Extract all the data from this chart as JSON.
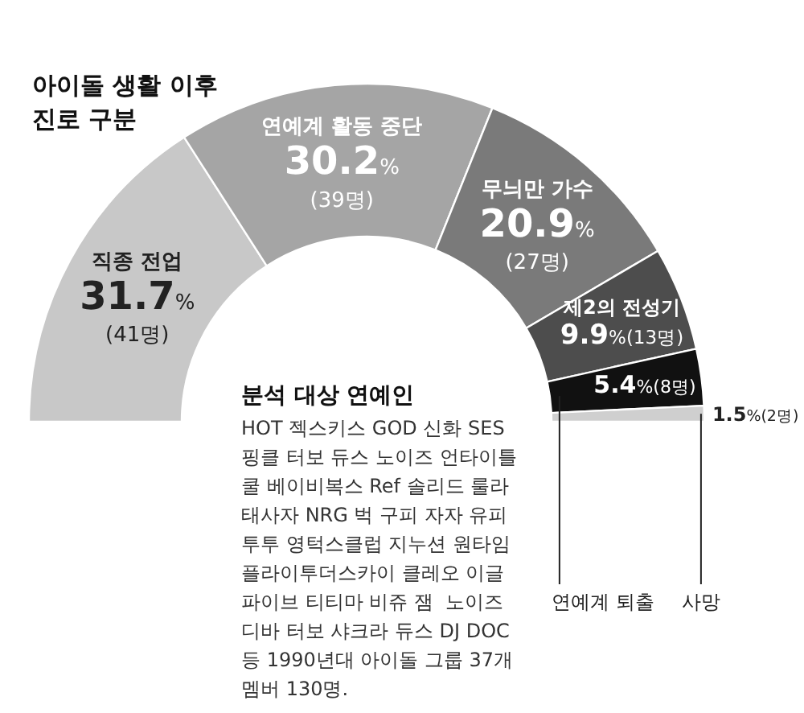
{
  "chart_data": {
    "type": "donut",
    "title": "아이돌 생활 이후\n진로 구분",
    "categories": [
      "직종 전업",
      "연예계 활동 중단",
      "무늬만 가수",
      "제2의 전성기",
      "연예계 퇴출",
      "사망"
    ],
    "values": [
      31.7,
      30.2,
      20.9,
      9.9,
      5.4,
      1.5
    ],
    "colors": [
      "#c8c8c8",
      "#a5a5a5",
      "#7a7a7a",
      "#4d4d4d",
      "#111111",
      "#cfcfcf"
    ],
    "value_labels": [
      "31.7%\n(41명)",
      "30.2%\n(39명)",
      "20.9%\n(27명)",
      "9.9%(13명)",
      "5.4%(8명)",
      "1.5%(2명)"
    ],
    "annotations": [
      "분석 대상 연예인",
      "HOT 젝스키스 GOD 신화 SES\n핑클 터보 듀스 노이즈 언타이틀\n쿨 베이비복스 Ref 솔리드 룰라\n태사자 NRG 벅 구피 자자 유피\n투투 영턱스클럽 지누션 원타임\n플라이투더스카이 클레오 이글\n파이브 티티마 비쥬 잼  노이즈\n디바 터보 샤크라 듀스 DJ DOC\n등 1990년대 아이돌 그룹 37개\n멤버 130명."
    ]
  }
}
